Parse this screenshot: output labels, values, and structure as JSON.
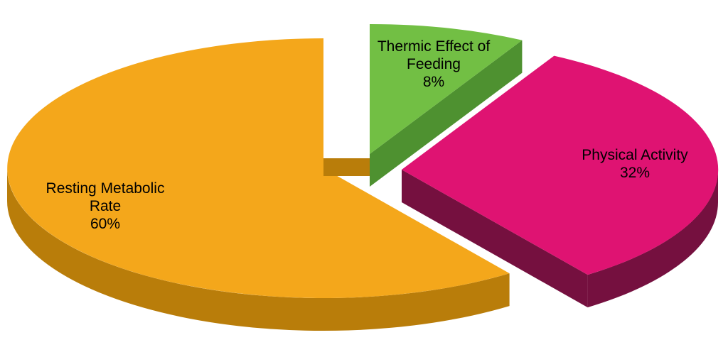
{
  "figure": {
    "background": "#FFFFFF",
    "kind": "3d-exploded-pie"
  },
  "chart_data": {
    "type": "pie",
    "title": "",
    "unit": "%",
    "three_d": true,
    "direction": "clockwise",
    "start_angle_deg": 0,
    "legend": "none",
    "labels_on_slices": true,
    "slices": [
      {
        "label": "Thermic Effect of Feeding",
        "label_lines": [
          "Thermic Effect of",
          "Feeding"
        ],
        "value": 8,
        "pct_label": "8%",
        "color": "#72BF44",
        "side_color": "#4E9130",
        "exploded": true
      },
      {
        "label": "Physical Activity",
        "label_lines": [
          "Physical Activity"
        ],
        "value": 32,
        "pct_label": "32%",
        "color": "#DF1372",
        "side_color": "#75103F",
        "exploded": true
      },
      {
        "label": "Resting Metabolic Rate",
        "label_lines": [
          "Resting Metabolic",
          "Rate"
        ],
        "value": 60,
        "pct_label": "60%",
        "color": "#F4A71B",
        "side_color": "#B97D0A",
        "exploded": false
      }
    ]
  }
}
